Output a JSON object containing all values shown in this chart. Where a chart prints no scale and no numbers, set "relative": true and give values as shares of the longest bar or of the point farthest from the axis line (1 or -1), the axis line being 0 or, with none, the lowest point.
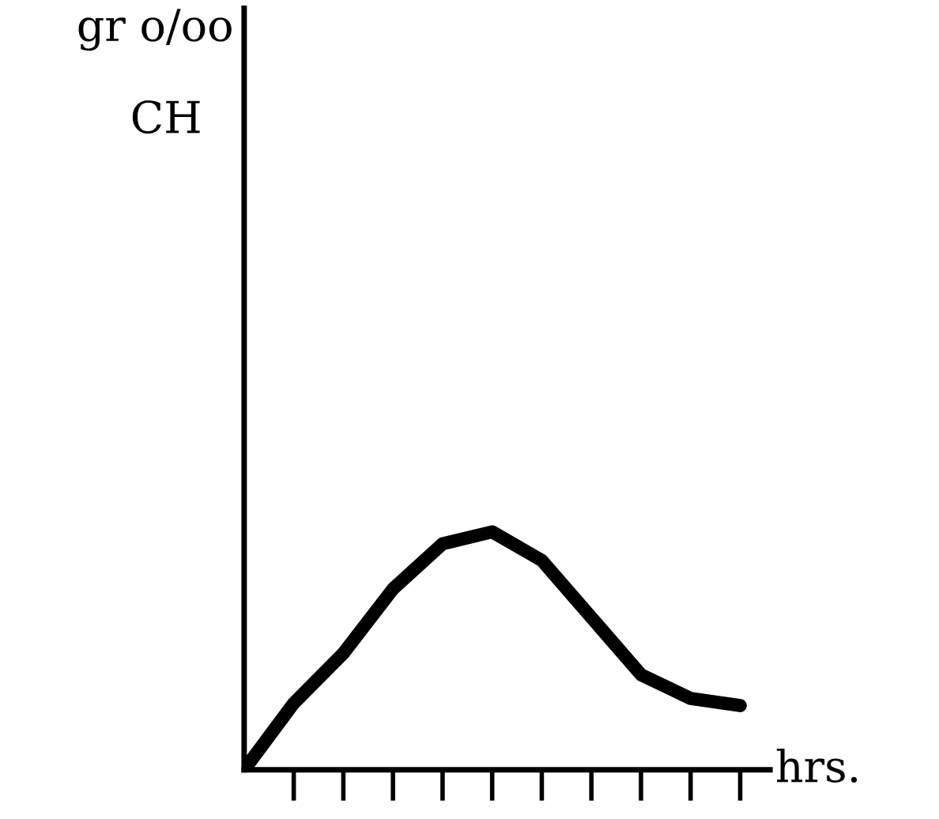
{
  "chart_data": {
    "type": "line",
    "relative": true,
    "xlabel": "hrs.",
    "annotations": [
      "gr o/oo",
      "CH"
    ],
    "categories": [
      null,
      null,
      null,
      null,
      null,
      null,
      null,
      null,
      null,
      null,
      null
    ],
    "series": [
      {
        "color": "#000000",
        "values": [
          0,
          0.28,
          0.49,
          0.76,
          0.95,
          1.0,
          0.88,
          0.64,
          0.4,
          0.3,
          0.27
        ]
      }
    ],
    "grid": false,
    "legend": false,
    "marker": "none",
    "line_style": "solid"
  }
}
